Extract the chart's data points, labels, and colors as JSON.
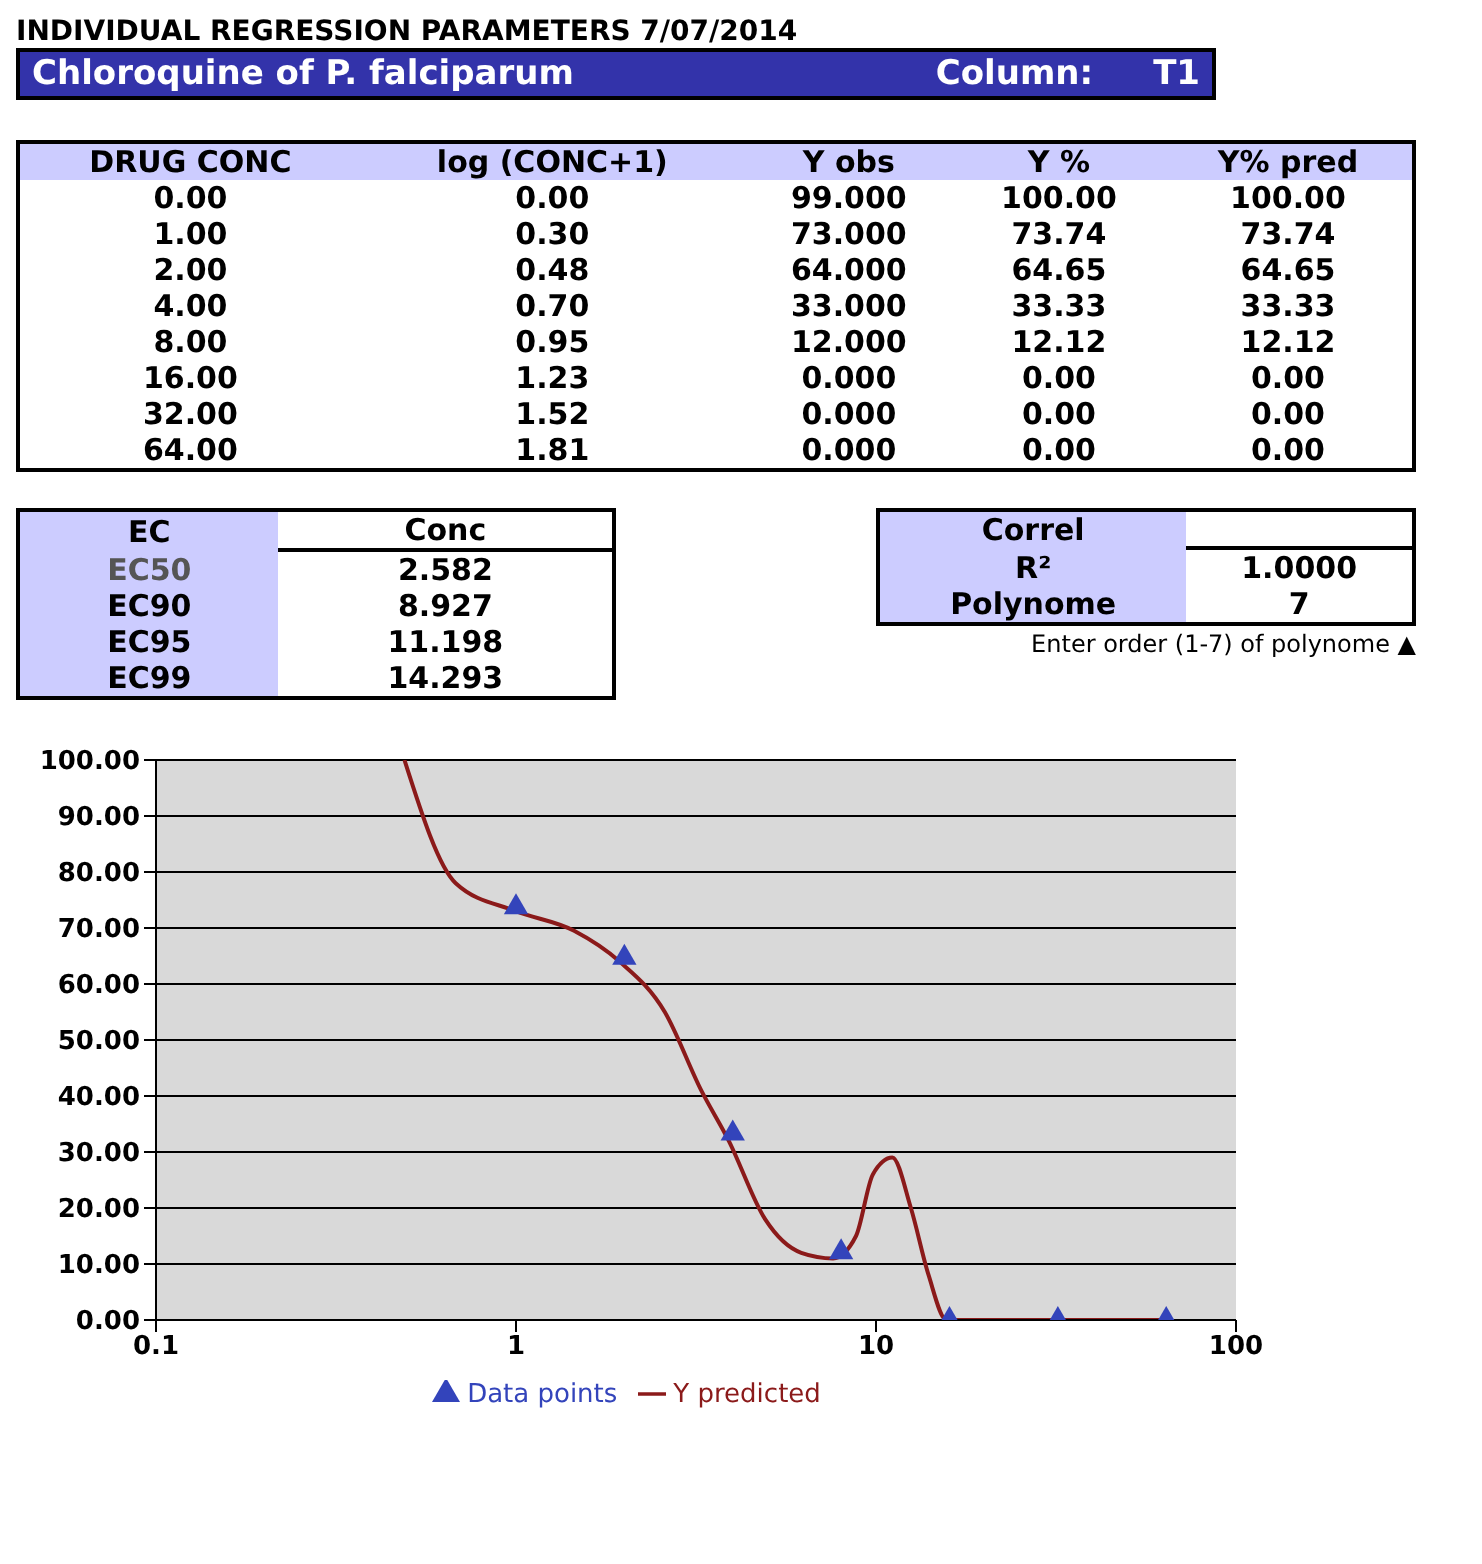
{
  "chart_data": [
    {
      "type": "other",
      "title": "INDIVIDUAL REGRESSION PARAMETERS 7/07/2014",
      "subtitle": "Chloroquine of P. falciparum",
      "annotations": [
        "Column:",
        "T1"
      ]
    },
    {
      "type": "other",
      "categories": [
        "DRUG CONC",
        "log (CONC+1)",
        "Y obs",
        "Y %",
        "Y% pred"
      ],
      "cell_labels": [
        [
          "0.00",
          "0.00",
          "99.000",
          "100.00",
          "100.00"
        ],
        [
          "1.00",
          "0.30",
          "73.000",
          "73.74",
          "73.74"
        ],
        [
          "2.00",
          "0.48",
          "64.000",
          "64.65",
          "64.65"
        ],
        [
          "4.00",
          "0.70",
          "33.000",
          "33.33",
          "33.33"
        ],
        [
          "8.00",
          "0.95",
          "12.000",
          "12.12",
          "12.12"
        ],
        [
          "16.00",
          "1.23",
          "0.000",
          "0.00",
          "0.00"
        ],
        [
          "32.00",
          "1.52",
          "0.000",
          "0.00",
          "0.00"
        ],
        [
          "64.00",
          "1.81",
          "0.000",
          "0.00",
          "0.00"
        ]
      ]
    },
    {
      "type": "other",
      "ylabel": "EC",
      "categories": [
        "Conc"
      ],
      "y_categories": [
        "EC50",
        "EC90",
        "EC95",
        "EC99"
      ],
      "cell_labels": [
        [
          "2.582"
        ],
        [
          "8.927"
        ],
        [
          "11.198"
        ],
        [
          "14.293"
        ]
      ]
    },
    {
      "type": "other",
      "title": "Correl",
      "y_categories": [
        "R²",
        "Polynome"
      ],
      "cell_labels": [
        [
          "1.0000"
        ],
        [
          "7"
        ]
      ],
      "annotations": [
        "Enter order (1-7) of polynome ▲"
      ]
    },
    {
      "type": "line",
      "log": "x",
      "xlim": [
        0.1,
        100
      ],
      "xticks": [
        0.1,
        1,
        10,
        100
      ],
      "ylim": [
        0,
        100
      ],
      "yticks": [
        {
          "value": 0,
          "label": "0.00"
        },
        {
          "value": 10,
          "label": "10.00"
        },
        {
          "value": 20,
          "label": "20.00"
        },
        {
          "value": 30,
          "label": "30.00"
        },
        {
          "value": 40,
          "label": "40.00"
        },
        {
          "value": 50,
          "label": "50.00"
        },
        {
          "value": 60,
          "label": "60.00"
        },
        {
          "value": 70,
          "label": "70.00"
        },
        {
          "value": 80,
          "label": "80.00"
        },
        {
          "value": 90,
          "label": "90.00"
        },
        {
          "value": 100,
          "label": "100.00"
        }
      ],
      "grid": "y",
      "legend": "bottom",
      "series": [
        {
          "name": "Data points",
          "type": "scatter",
          "marker": "triangle",
          "color": "#3344bb",
          "x": [
            1,
            2,
            4,
            8,
            16,
            32,
            64
          ],
          "values": [
            73.7,
            64.7,
            33.3,
            12.1,
            0,
            0,
            0
          ]
        },
        {
          "name": "Y predicted",
          "type": "line",
          "marker": "none",
          "color": "#8b1a1a",
          "x": [
            0.49,
            0.68,
            1,
            1.45,
            1.94,
            2.59,
            3.27,
            3.9,
            4.92,
            6.2,
            7.6,
            8.8,
            9.8,
            11.1,
            12.5,
            14,
            15.7,
            20,
            32,
            64
          ],
          "values": [
            100,
            78,
            73,
            69.5,
            64,
            55,
            41,
            32,
            18,
            12,
            11,
            15,
            26,
            29,
            20,
            8,
            0,
            0,
            0,
            0
          ]
        }
      ]
    }
  ]
}
